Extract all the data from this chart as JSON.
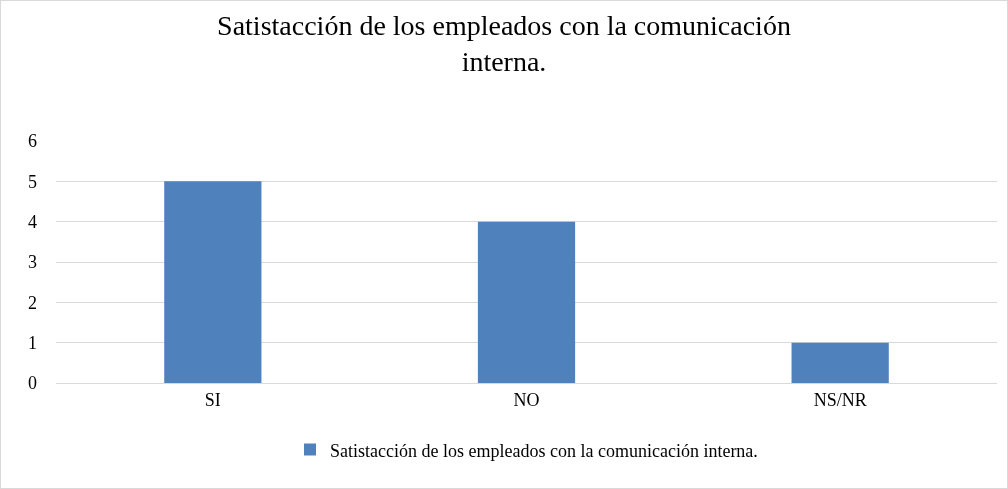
{
  "chart_data": {
    "type": "bar",
    "title": "Satistacción de los empleados con la comunicación interna.",
    "categories": [
      "SI",
      "NO",
      "NS/NR"
    ],
    "series": [
      {
        "name": "Satistacción de los empleados con la comunicación interna.",
        "color": "#4f81bd",
        "values": [
          5,
          4,
          1
        ]
      }
    ],
    "ylim": [
      0,
      6
    ],
    "yticks": [
      0,
      1,
      2,
      3,
      4,
      5,
      6
    ],
    "grid": "y",
    "legend": "bottom"
  }
}
